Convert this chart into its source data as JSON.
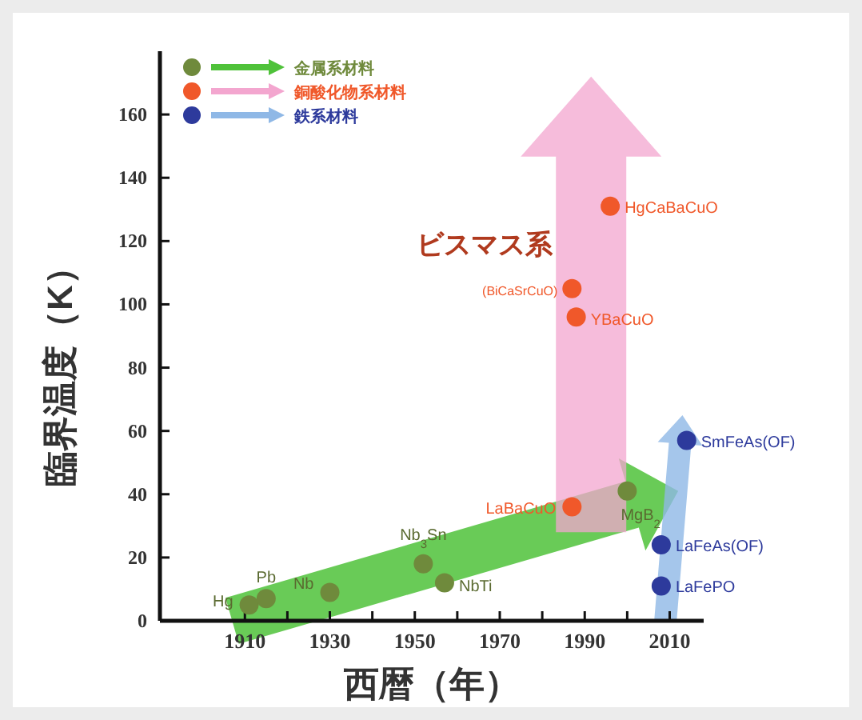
{
  "chart_data": {
    "type": "scatter",
    "xlabel": "西暦（年）",
    "ylabel": "臨界温度（K）",
    "xlim": [
      1890,
      2018
    ],
    "ylim": [
      0,
      180
    ],
    "xticks": [
      1910,
      {
        "value": 1920,
        "label": null
      },
      1930,
      {
        "value": 1940,
        "label": null
      },
      1950,
      {
        "value": 1960,
        "label": null
      },
      1970,
      {
        "value": 1980,
        "label": null
      },
      1990,
      {
        "value": 2000,
        "label": null
      },
      2010
    ],
    "yticks": [
      0,
      20,
      40,
      60,
      80,
      100,
      120,
      140,
      160
    ],
    "legend": "top left",
    "grid": false,
    "marker": "circle",
    "series": [
      {
        "name": "金属系材料",
        "color": "#6f8a3c",
        "x": [
          1911,
          1915,
          1930,
          1952,
          1957,
          2000
        ],
        "values": [
          5,
          7,
          9,
          18,
          12,
          41
        ]
      },
      {
        "name": "銅酸化物系材料",
        "color": "#f0582a",
        "x": [
          1987,
          1988,
          1987,
          1996
        ],
        "values": [
          36,
          96,
          105,
          131
        ]
      },
      {
        "name": "鉄系材料",
        "color": "#2d3a9c",
        "x": [
          2014,
          2008,
          2008
        ],
        "values": [
          57,
          24,
          11
        ]
      }
    ],
    "annotations": [
      {
        "text": "Hg",
        "x": 1911,
        "y": 5
      },
      {
        "text": "Pb",
        "x": 1915,
        "y": 7
      },
      {
        "text": "Nb",
        "x": 1930,
        "y": 9
      },
      {
        "text": "Nb$_{3}$Sn",
        "x": 1952,
        "y": 18
      },
      {
        "text": "NbTi",
        "x": 1957,
        "y": 12
      },
      {
        "text": "MgB$_{2}$",
        "x": 2000,
        "y": 41
      },
      {
        "text": "LaBaCuO",
        "x": 1987,
        "y": 36
      },
      {
        "text": "YBaCuO",
        "x": 1988,
        "y": 96
      },
      {
        "text": "(BiCaSrCuO)",
        "x": 1987,
        "y": 105
      },
      {
        "text": "ビスマス系",
        "x": 1987,
        "y": 105
      },
      {
        "text": "HgCaBaCuO",
        "x": 1996,
        "y": 131
      },
      {
        "text": "SmFeAs(OF)",
        "x": 2014,
        "y": 57
      },
      {
        "text": "LaFeAs(OF)",
        "x": 2008,
        "y": 24
      },
      {
        "text": "LaFePO",
        "x": 2008,
        "y": 11
      }
    ]
  }
}
